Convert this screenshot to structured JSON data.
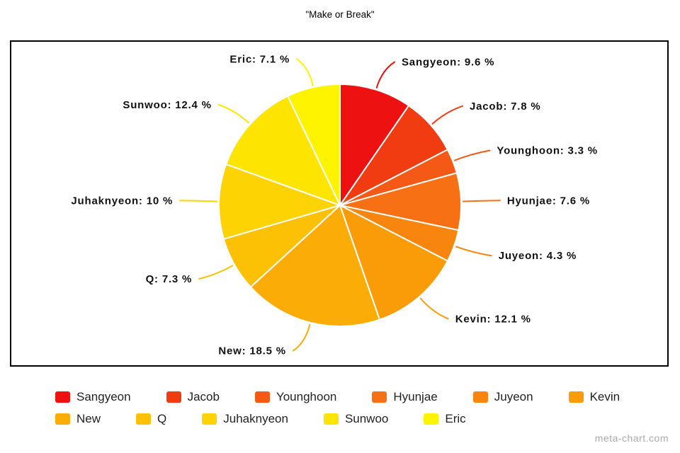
{
  "title": "\"Make or Break\"",
  "watermark": "meta-chart.com",
  "chart_data": {
    "type": "pie",
    "title": "\"Make or Break\"",
    "value_suffix": "%",
    "start_angle_deg": 0,
    "direction": "clockwise",
    "label_format": "Name: value %",
    "slices": [
      {
        "label": "Sangyeon",
        "value": 9.6,
        "color": "#EE1111"
      },
      {
        "label": "Jacob",
        "value": 7.8,
        "color": "#F13C12"
      },
      {
        "label": "Younghoon",
        "value": 3.3,
        "color": "#F45915"
      },
      {
        "label": "Hyunjae",
        "value": 7.6,
        "color": "#F77114"
      },
      {
        "label": "Juyeon",
        "value": 4.3,
        "color": "#F8860E"
      },
      {
        "label": "Kevin",
        "value": 12.1,
        "color": "#FA9B08"
      },
      {
        "label": "New",
        "value": 18.5,
        "color": "#FBAC06"
      },
      {
        "label": "Q",
        "value": 7.3,
        "color": "#FCC005"
      },
      {
        "label": "Juhaknyeon",
        "value": 10,
        "color": "#FDD303"
      },
      {
        "label": "Sunwoo",
        "value": 12.4,
        "color": "#FEE501"
      },
      {
        "label": "Eric",
        "value": 7.1,
        "color": "#FFF400"
      }
    ],
    "legend_position": "bottom",
    "legend_rows": [
      [
        "Sangyeon",
        "Jacob",
        "Younghoon",
        "Hyunjae",
        "Juyeon",
        "Kevin"
      ],
      [
        "New",
        "Q",
        "Juhaknyeon",
        "Sunwoo",
        "Eric"
      ]
    ]
  }
}
